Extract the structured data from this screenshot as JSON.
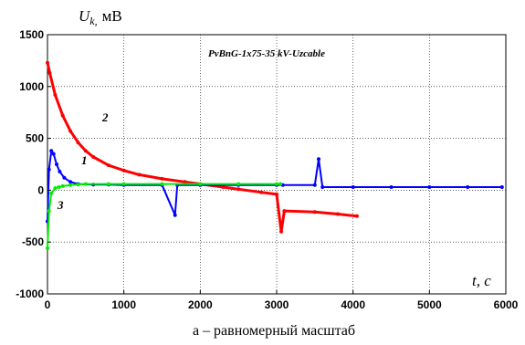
{
  "chart_data": {
    "type": "line",
    "title": "PvBnG-1x75-35 kV-Uzcable",
    "ylabel": {
      "symbol": "U",
      "subscript": "k,",
      "unit": "мВ"
    },
    "xlabel": "t, c",
    "xlim": [
      0,
      6000
    ],
    "ylim": [
      -1000,
      1500
    ],
    "x_ticks": [
      0,
      1000,
      2000,
      3000,
      4000,
      5000,
      6000
    ],
    "y_ticks": [
      -1000,
      -500,
      0,
      500,
      1000,
      1500
    ],
    "grid": true,
    "caption": "а – равномерный масштаб",
    "series": [
      {
        "name": "1",
        "color": "#0000ff",
        "x": [
          0,
          20,
          50,
          80,
          120,
          160,
          220,
          300,
          400,
          600,
          800,
          1000,
          1500,
          1670,
          1700,
          2000,
          2500,
          3000,
          3080,
          3500,
          3550,
          3600,
          4000,
          4500,
          5000,
          5500,
          5950
        ],
        "y": [
          -300,
          200,
          380,
          350,
          250,
          180,
          120,
          80,
          60,
          55,
          55,
          50,
          50,
          -240,
          50,
          50,
          50,
          50,
          50,
          50,
          300,
          30,
          30,
          30,
          30,
          30,
          30
        ]
      },
      {
        "name": "2",
        "color": "#ff0000",
        "x": [
          0,
          30,
          100,
          200,
          300,
          400,
          500,
          600,
          800,
          1000,
          1200,
          1500,
          1800,
          2000,
          2300,
          2500,
          2800,
          3000,
          3060,
          3100,
          3500,
          3800,
          4050
        ],
        "y": [
          1230,
          1130,
          920,
          720,
          570,
          460,
          380,
          320,
          240,
          190,
          150,
          110,
          80,
          60,
          30,
          10,
          -20,
          -40,
          -400,
          -200,
          -210,
          -230,
          -250
        ]
      },
      {
        "name": "3",
        "color": "#00ee00",
        "x": [
          0,
          20,
          50,
          100,
          150,
          200,
          300,
          400,
          500,
          800,
          1000,
          1500,
          2000,
          2500,
          3000,
          3050
        ],
        "y": [
          -560,
          -200,
          -30,
          20,
          30,
          40,
          50,
          55,
          60,
          60,
          60,
          60,
          60,
          60,
          60,
          60
        ]
      }
    ]
  }
}
